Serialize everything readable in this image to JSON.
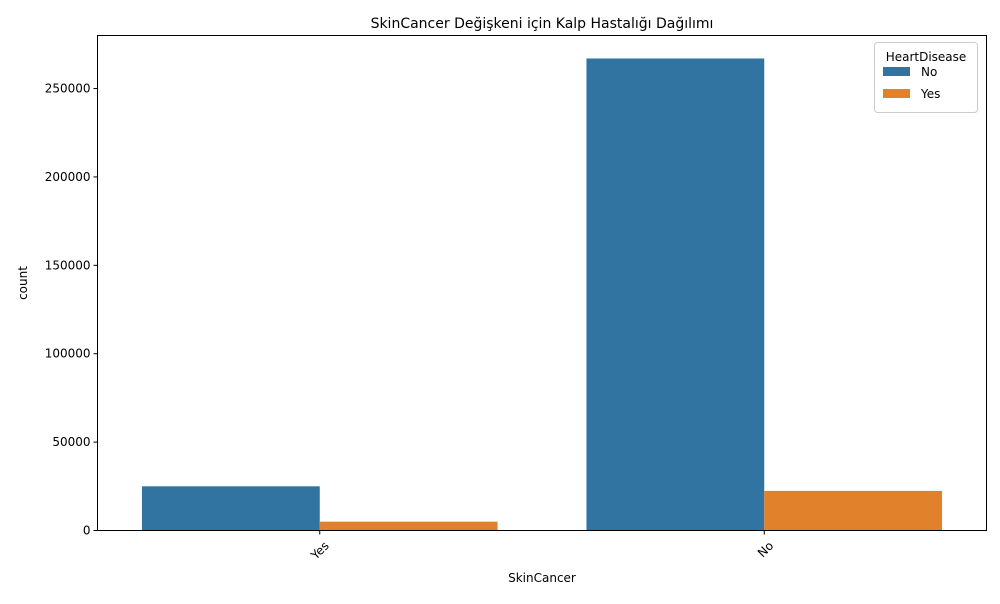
{
  "chart_data": {
    "type": "bar",
    "title": "SkinCancer Değişkeni için Kalp Hastalığı Dağılımı",
    "xlabel": "SkinCancer",
    "ylabel": "count",
    "categories": [
      "Yes",
      "No"
    ],
    "series": [
      {
        "name": "No",
        "values": [
          25000,
          267000
        ],
        "color": "#3274a1"
      },
      {
        "name": "Yes",
        "values": [
          5000,
          22400
        ],
        "color": "#e1812c"
      }
    ],
    "ylim": [
      0,
      280000
    ],
    "yticks": [
      0,
      50000,
      100000,
      150000,
      200000,
      250000
    ],
    "ytick_labels": [
      "0",
      "50000",
      "100000",
      "150000",
      "200000",
      "250000"
    ],
    "grid": false,
    "legend": {
      "title": "HeartDisease",
      "position": "top-right"
    }
  }
}
